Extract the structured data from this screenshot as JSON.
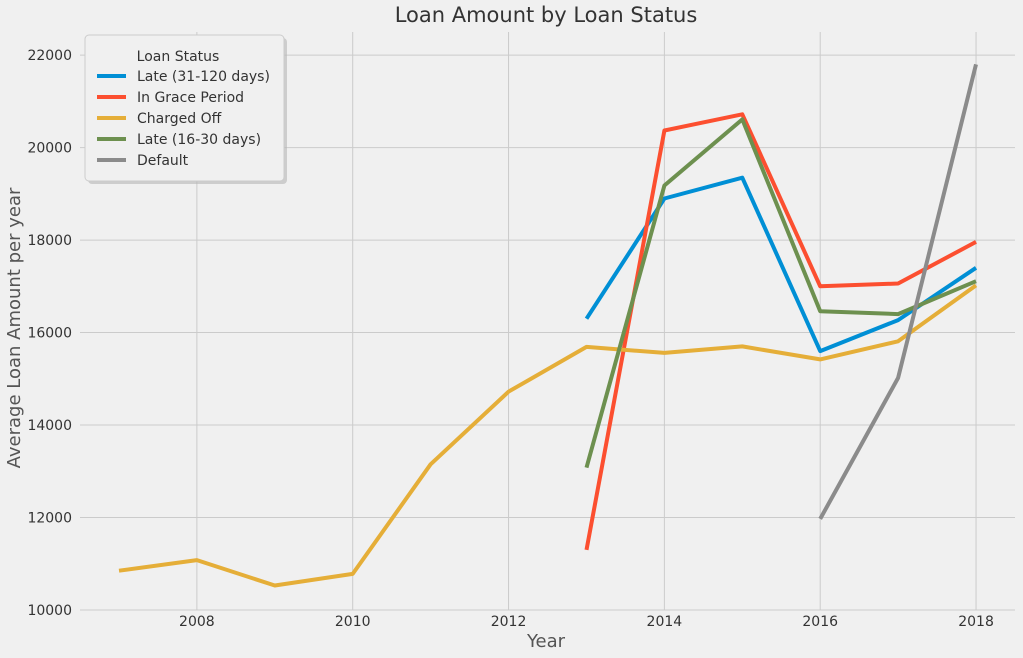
{
  "chart_data": {
    "type": "line",
    "title": "Loan Amount by Loan Status",
    "xlabel": "Year",
    "ylabel": "Average Loan Amount per year",
    "xlim": [
      2006.5,
      2018.5
    ],
    "ylim": [
      10000,
      22500
    ],
    "x_ticks": [
      2008,
      2010,
      2012,
      2014,
      2016,
      2018
    ],
    "y_ticks": [
      10000,
      12000,
      14000,
      16000,
      18000,
      20000,
      22000
    ],
    "grid": true,
    "legend": {
      "title": "Loan Status",
      "placement": "top-left"
    },
    "series": [
      {
        "name": "Late (31-120 days)",
        "color": "#008fd5",
        "x": [
          2013,
          2014,
          2015,
          2016,
          2017,
          2018
        ],
        "y": [
          16300,
          18900,
          19350,
          15600,
          16270,
          17400
        ]
      },
      {
        "name": "In Grace Period",
        "color": "#fc4f30",
        "x": [
          2013,
          2014,
          2015,
          2016,
          2017,
          2018
        ],
        "y": [
          11300,
          20370,
          20720,
          17000,
          17060,
          17960
        ]
      },
      {
        "name": "Charged Off",
        "color": "#e5ae38",
        "x": [
          2007,
          2008,
          2009,
          2010,
          2011,
          2012,
          2013,
          2014,
          2015,
          2016,
          2017,
          2018
        ],
        "y": [
          10850,
          11080,
          10530,
          10780,
          13150,
          14720,
          15690,
          15560,
          15700,
          15420,
          15810,
          17020
        ]
      },
      {
        "name": "Late (16-30 days)",
        "color": "#6d904f",
        "x": [
          2013,
          2014,
          2015,
          2016,
          2017,
          2018
        ],
        "y": [
          13080,
          19180,
          20610,
          16460,
          16400,
          17110
        ]
      },
      {
        "name": "Default",
        "color": "#8b8b8b",
        "x": [
          2016,
          2017,
          2018
        ],
        "y": [
          11970,
          15020,
          21800
        ]
      }
    ]
  }
}
